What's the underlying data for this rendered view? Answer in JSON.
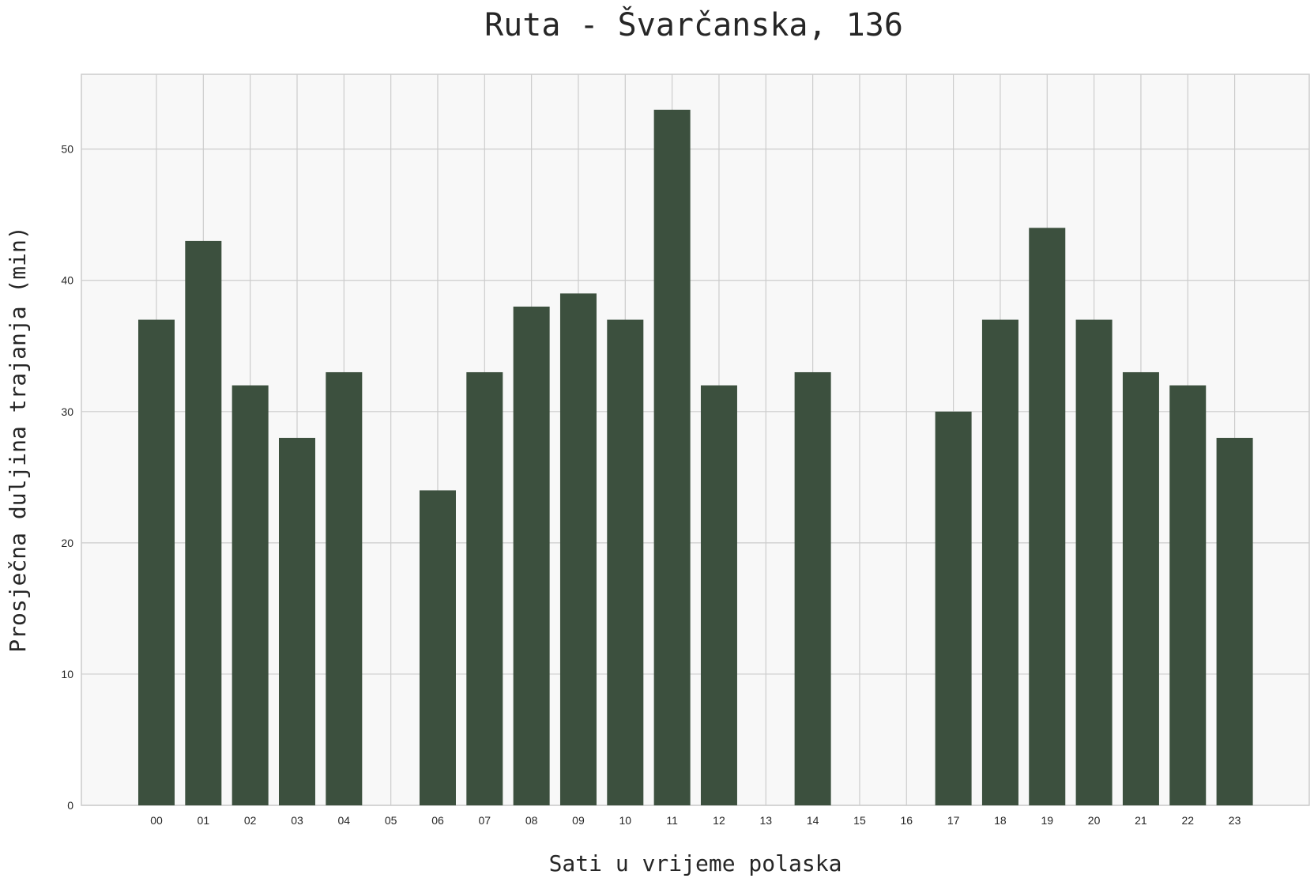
{
  "chart_data": {
    "type": "bar",
    "title": "Ruta - Švarčanska, 136",
    "xlabel": "Sati u vrijeme polaska",
    "ylabel": "Prosječna duljina trajanja (min)",
    "categories": [
      "00",
      "01",
      "02",
      "03",
      "04",
      "05",
      "06",
      "07",
      "08",
      "09",
      "10",
      "11",
      "12",
      "13",
      "14",
      "15",
      "16",
      "17",
      "18",
      "19",
      "20",
      "21",
      "22",
      "23"
    ],
    "values": [
      37,
      43,
      32,
      28,
      33,
      null,
      24,
      33,
      38,
      39,
      37,
      53,
      32,
      null,
      33,
      null,
      null,
      30,
      37,
      44,
      37,
      33,
      32,
      28
    ],
    "ylim": [
      0,
      55.7
    ],
    "yticks": [
      0,
      10,
      20,
      30,
      40,
      50
    ],
    "grid": true,
    "colors": {
      "bar": "#3c503e",
      "plot_background": "#f8f8f8",
      "grid": "#cccccc"
    }
  }
}
